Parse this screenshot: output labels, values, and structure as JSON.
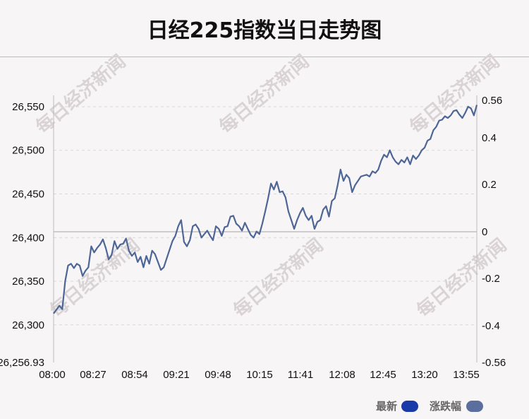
{
  "title": "日经225指数当日走势图",
  "watermark": "每日经济新闻",
  "colors": {
    "latest": "#1a3aa8",
    "change": "#5b6f9e",
    "line": "#4e6696",
    "zero_line": "#c0c0c0",
    "grid": "#d8d8d8"
  },
  "legend": [
    {
      "label": "最新",
      "color": "#1a3aa8"
    },
    {
      "label": "涨跌幅",
      "color": "#5b6f9e"
    }
  ],
  "chart_data": {
    "type": "line",
    "title": "日经225指数当日走势图",
    "x_ticks": [
      "08:00",
      "08:27",
      "08:54",
      "09:21",
      "09:48",
      "10:15",
      "11:41",
      "12:08",
      "12:45",
      "13:20",
      "13:55"
    ],
    "y_left_ticks": [
      "26,256.93",
      "26,300",
      "26,350",
      "26,400",
      "26,450",
      "26,500",
      "26,550"
    ],
    "y_left_range": [
      26256.93,
      26554
    ],
    "y_right_ticks": [
      "-0.56",
      "-0.4",
      "-0.2",
      "0",
      "0.2",
      "0.4",
      "0.56"
    ],
    "y_right_range": [
      -0.56,
      0.56
    ],
    "grid": true,
    "legend_position": "bottom-right",
    "series": [
      {
        "name": "最新",
        "points": [
          [
            0,
            26313
          ],
          [
            1,
            26322
          ],
          [
            1.5,
            26318
          ],
          [
            2,
            26350
          ],
          [
            2.5,
            26368
          ],
          [
            3,
            26370
          ],
          [
            3.5,
            26365
          ],
          [
            4,
            26370
          ],
          [
            4.5,
            26368
          ],
          [
            5,
            26356
          ],
          [
            5.5,
            26362
          ],
          [
            6,
            26366
          ],
          [
            6.5,
            26390
          ],
          [
            7,
            26383
          ],
          [
            7.5,
            26388
          ],
          [
            8,
            26392
          ],
          [
            8.5,
            26398
          ],
          [
            9,
            26388
          ],
          [
            9.5,
            26375
          ],
          [
            10,
            26380
          ],
          [
            10.5,
            26396
          ],
          [
            11,
            26387
          ],
          [
            11.5,
            26392
          ],
          [
            12,
            26393
          ],
          [
            12.5,
            26399
          ],
          [
            13,
            26385
          ],
          [
            13.5,
            26379
          ],
          [
            14,
            26383
          ],
          [
            14.5,
            26372
          ],
          [
            15,
            26378
          ],
          [
            15.5,
            26366
          ],
          [
            16,
            26379
          ],
          [
            16.5,
            26370
          ],
          [
            17,
            26385
          ],
          [
            17.5,
            26381
          ],
          [
            18,
            26372
          ],
          [
            18.5,
            26363
          ],
          [
            19,
            26366
          ],
          [
            19.5,
            26376
          ],
          [
            20,
            26386
          ],
          [
            20.5,
            26396
          ],
          [
            21,
            26402
          ],
          [
            21.5,
            26413
          ],
          [
            22,
            26420
          ],
          [
            22.5,
            26395
          ],
          [
            23,
            26390
          ],
          [
            23.5,
            26397
          ],
          [
            24,
            26413
          ],
          [
            24.5,
            26415
          ],
          [
            25,
            26410
          ],
          [
            25.5,
            26400
          ],
          [
            26,
            26404
          ],
          [
            26.5,
            26408
          ],
          [
            27,
            26402
          ],
          [
            27.5,
            26397
          ],
          [
            28,
            26413
          ],
          [
            28.5,
            26410
          ],
          [
            29,
            26402
          ],
          [
            29.5,
            26412
          ],
          [
            30,
            26413
          ],
          [
            30.5,
            26424
          ],
          [
            31,
            26425
          ],
          [
            31.5,
            26416
          ],
          [
            32,
            26413
          ],
          [
            32.5,
            26408
          ],
          [
            33,
            26417
          ],
          [
            33.5,
            26410
          ],
          [
            34,
            26403
          ],
          [
            34.5,
            26400
          ],
          [
            35,
            26407
          ],
          [
            35.5,
            26404
          ],
          [
            36,
            26416
          ],
          [
            36.5,
            26430
          ],
          [
            37,
            26445
          ],
          [
            37.5,
            26462
          ],
          [
            38,
            26455
          ],
          [
            38.5,
            26464
          ],
          [
            39,
            26452
          ],
          [
            39.5,
            26453
          ],
          [
            40,
            26446
          ],
          [
            40.5,
            26430
          ],
          [
            41,
            26420
          ],
          [
            41.5,
            26410
          ],
          [
            42,
            26420
          ],
          [
            42.5,
            26428
          ],
          [
            43,
            26434
          ],
          [
            43.5,
            26425
          ],
          [
            44,
            26420
          ],
          [
            44.5,
            26425
          ],
          [
            45,
            26410
          ],
          [
            45.5,
            26418
          ],
          [
            46,
            26420
          ],
          [
            46.5,
            26432
          ],
          [
            47,
            26436
          ],
          [
            47.5,
            26424
          ],
          [
            48,
            26442
          ],
          [
            48.5,
            26445
          ],
          [
            49,
            26460
          ],
          [
            49.5,
            26478
          ],
          [
            50,
            26465
          ],
          [
            50.5,
            26472
          ],
          [
            51,
            26468
          ],
          [
            51.5,
            26452
          ],
          [
            52,
            26460
          ],
          [
            52.5,
            26465
          ],
          [
            53,
            26470
          ],
          [
            53.5,
            26471
          ],
          [
            54,
            26472
          ],
          [
            54.5,
            26470
          ],
          [
            55,
            26476
          ],
          [
            55.5,
            26474
          ],
          [
            56,
            26478
          ],
          [
            56.5,
            26488
          ],
          [
            57,
            26495
          ],
          [
            57.5,
            26492
          ],
          [
            58,
            26500
          ],
          [
            58.5,
            26492
          ],
          [
            59,
            26487
          ],
          [
            59.5,
            26484
          ],
          [
            60,
            26489
          ],
          [
            60.5,
            26486
          ],
          [
            61,
            26492
          ],
          [
            61.5,
            26484
          ],
          [
            62,
            26494
          ],
          [
            62.5,
            26490
          ],
          [
            63,
            26494
          ],
          [
            63.5,
            26500
          ],
          [
            64,
            26503
          ],
          [
            64.5,
            26511
          ],
          [
            65,
            26513
          ],
          [
            65.5,
            26523
          ],
          [
            66,
            26527
          ],
          [
            66.5,
            26534
          ],
          [
            67,
            26535
          ],
          [
            67.5,
            26539
          ],
          [
            68,
            26537
          ],
          [
            68.5,
            26540
          ],
          [
            69,
            26545
          ],
          [
            69.5,
            26546
          ],
          [
            70,
            26541
          ],
          [
            70.5,
            26537
          ],
          [
            71,
            26543
          ],
          [
            71.5,
            26550
          ],
          [
            72,
            26548
          ],
          [
            72.5,
            26540
          ],
          [
            73,
            26552
          ]
        ]
      },
      {
        "name": "涨跌幅",
        "note_values_in_percent": true
      }
    ]
  }
}
